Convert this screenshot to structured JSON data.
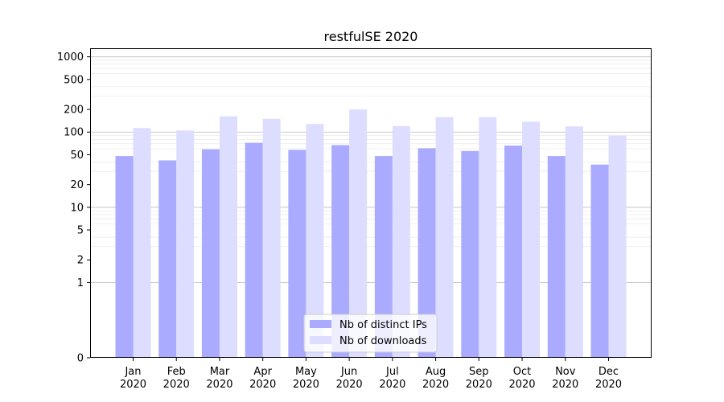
{
  "chart_data": {
    "type": "bar",
    "title": "restfulSE 2020",
    "xlabel": "",
    "ylabel": "",
    "yscale": "symlog",
    "ylim": [
      0,
      1300
    ],
    "yticks": [
      0,
      1,
      2,
      5,
      10,
      20,
      50,
      100,
      200,
      500,
      1000
    ],
    "grid": "y",
    "legend_position": "bottom-center",
    "categories": [
      "Jan\n2020",
      "Feb\n2020",
      "Mar\n2020",
      "Apr\n2020",
      "May\n2020",
      "Jun\n2020",
      "Jul\n2020",
      "Aug\n2020",
      "Sep\n2020",
      "Oct\n2020",
      "Nov\n2020",
      "Dec\n2020"
    ],
    "series": [
      {
        "name": "Nb of distinct IPs",
        "color": "#aaaaff",
        "values": [
          48,
          42,
          59,
          72,
          58,
          67,
          48,
          61,
          56,
          66,
          48,
          37
        ]
      },
      {
        "name": "Nb of downloads",
        "color": "#ddddff",
        "values": [
          113,
          105,
          162,
          150,
          128,
          200,
          120,
          158,
          158,
          137,
          119,
          90
        ]
      }
    ]
  }
}
